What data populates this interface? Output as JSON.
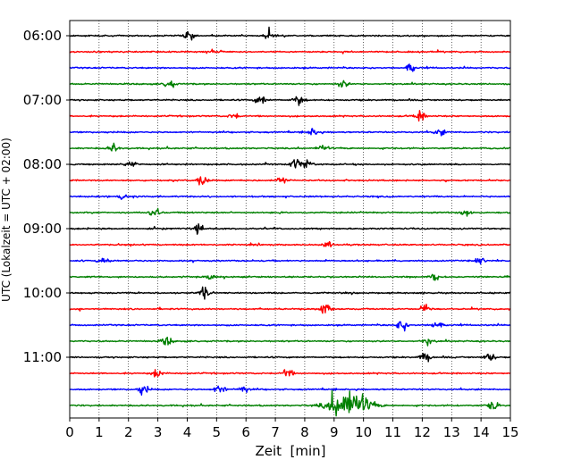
{
  "chart_data": {
    "type": "line",
    "chart_kind": "helicorder (seismogram drum plot)",
    "xlabel": "Zeit  [min]",
    "ylabel": "UTC (Lokalzeit = UTC + 02:00)",
    "xlim": [
      0,
      15
    ],
    "x_ticks": [
      0,
      1,
      2,
      3,
      4,
      5,
      6,
      7,
      8,
      9,
      10,
      11,
      12,
      13,
      14,
      15
    ],
    "x_tick_labels": [
      "0",
      "1",
      "2",
      "3",
      "4",
      "5",
      "6",
      "7",
      "8",
      "9",
      "10",
      "11",
      "12",
      "13",
      "14",
      "15"
    ],
    "y_tick_labels": [
      "06:00",
      "07:00",
      "08:00",
      "09:00",
      "10:00",
      "11:00"
    ],
    "x_grid": "dotted vertical lines at every minute",
    "line_interval_minutes": 15,
    "color_cycle": [
      "#000000",
      "#ff0000",
      "#0000ff",
      "#008000"
    ],
    "traces": [
      {
        "start": "06:00",
        "color": "#000000",
        "events": [
          {
            "t": 4.1,
            "amp": 0.45
          },
          {
            "t": 6.8,
            "amp": 0.3
          }
        ]
      },
      {
        "start": "06:15",
        "color": "#ff0000",
        "events": [
          {
            "t": 5.0,
            "amp": 0.2
          }
        ]
      },
      {
        "start": "06:30",
        "color": "#0000ff",
        "events": [
          {
            "t": 11.6,
            "amp": 0.5
          }
        ]
      },
      {
        "start": "06:45",
        "color": "#008000",
        "events": [
          {
            "t": 3.4,
            "amp": 0.45
          },
          {
            "t": 9.3,
            "amp": 0.35
          }
        ]
      },
      {
        "start": "07:00",
        "color": "#000000",
        "events": [
          {
            "t": 6.5,
            "amp": 0.55
          },
          {
            "t": 7.8,
            "amp": 0.55
          }
        ]
      },
      {
        "start": "07:15",
        "color": "#ff0000",
        "events": [
          {
            "t": 5.6,
            "amp": 0.3
          },
          {
            "t": 11.9,
            "amp": 0.6
          }
        ]
      },
      {
        "start": "07:30",
        "color": "#0000ff",
        "events": [
          {
            "t": 8.3,
            "amp": 0.4
          },
          {
            "t": 12.6,
            "amp": 0.35
          }
        ]
      },
      {
        "start": "07:45",
        "color": "#008000",
        "events": [
          {
            "t": 1.5,
            "amp": 0.45
          },
          {
            "t": 8.6,
            "amp": 0.4
          }
        ]
      },
      {
        "start": "08:00",
        "color": "#000000",
        "events": [
          {
            "t": 2.1,
            "amp": 0.35
          },
          {
            "t": 7.7,
            "amp": 0.6
          },
          {
            "t": 8.1,
            "amp": 0.45
          }
        ]
      },
      {
        "start": "08:15",
        "color": "#ff0000",
        "events": [
          {
            "t": 4.5,
            "amp": 0.55
          },
          {
            "t": 7.2,
            "amp": 0.35
          }
        ]
      },
      {
        "start": "08:30",
        "color": "#0000ff",
        "events": [
          {
            "t": 1.8,
            "amp": 0.4
          }
        ]
      },
      {
        "start": "08:45",
        "color": "#008000",
        "events": [
          {
            "t": 2.9,
            "amp": 0.55
          },
          {
            "t": 13.5,
            "amp": 0.45
          }
        ]
      },
      {
        "start": "09:00",
        "color": "#000000",
        "events": [
          {
            "t": 4.4,
            "amp": 0.55
          }
        ]
      },
      {
        "start": "09:15",
        "color": "#ff0000",
        "events": [
          {
            "t": 8.8,
            "amp": 0.3
          }
        ]
      },
      {
        "start": "09:30",
        "color": "#0000ff",
        "events": [
          {
            "t": 1.2,
            "amp": 0.35
          },
          {
            "t": 14.0,
            "amp": 0.3
          }
        ]
      },
      {
        "start": "09:45",
        "color": "#008000",
        "events": [
          {
            "t": 4.8,
            "amp": 0.35
          },
          {
            "t": 12.4,
            "amp": 0.45
          }
        ]
      },
      {
        "start": "10:00",
        "color": "#000000",
        "events": [
          {
            "t": 4.6,
            "amp": 0.65
          }
        ]
      },
      {
        "start": "10:15",
        "color": "#ff0000",
        "events": [
          {
            "t": 8.7,
            "amp": 0.7
          },
          {
            "t": 12.1,
            "amp": 0.45
          }
        ]
      },
      {
        "start": "10:30",
        "color": "#0000ff",
        "events": [
          {
            "t": 11.3,
            "amp": 0.6
          },
          {
            "t": 12.5,
            "amp": 0.5
          }
        ]
      },
      {
        "start": "10:45",
        "color": "#008000",
        "events": [
          {
            "t": 3.3,
            "amp": 0.45
          },
          {
            "t": 12.2,
            "amp": 0.35
          }
        ]
      },
      {
        "start": "11:00",
        "color": "#000000",
        "events": [
          {
            "t": 12.1,
            "amp": 0.5
          },
          {
            "t": 14.3,
            "amp": 0.45
          }
        ]
      },
      {
        "start": "11:15",
        "color": "#ff0000",
        "events": [
          {
            "t": 3.0,
            "amp": 0.5
          },
          {
            "t": 7.4,
            "amp": 0.5
          }
        ]
      },
      {
        "start": "11:30",
        "color": "#0000ff",
        "events": [
          {
            "t": 2.5,
            "amp": 0.55
          },
          {
            "t": 5.1,
            "amp": 0.6
          },
          {
            "t": 5.9,
            "amp": 0.45
          }
        ]
      },
      {
        "start": "11:45",
        "color": "#008000",
        "events": [
          {
            "t": 9.5,
            "amp": 1.7
          },
          {
            "t": 14.4,
            "amp": 0.5
          }
        ]
      }
    ]
  }
}
